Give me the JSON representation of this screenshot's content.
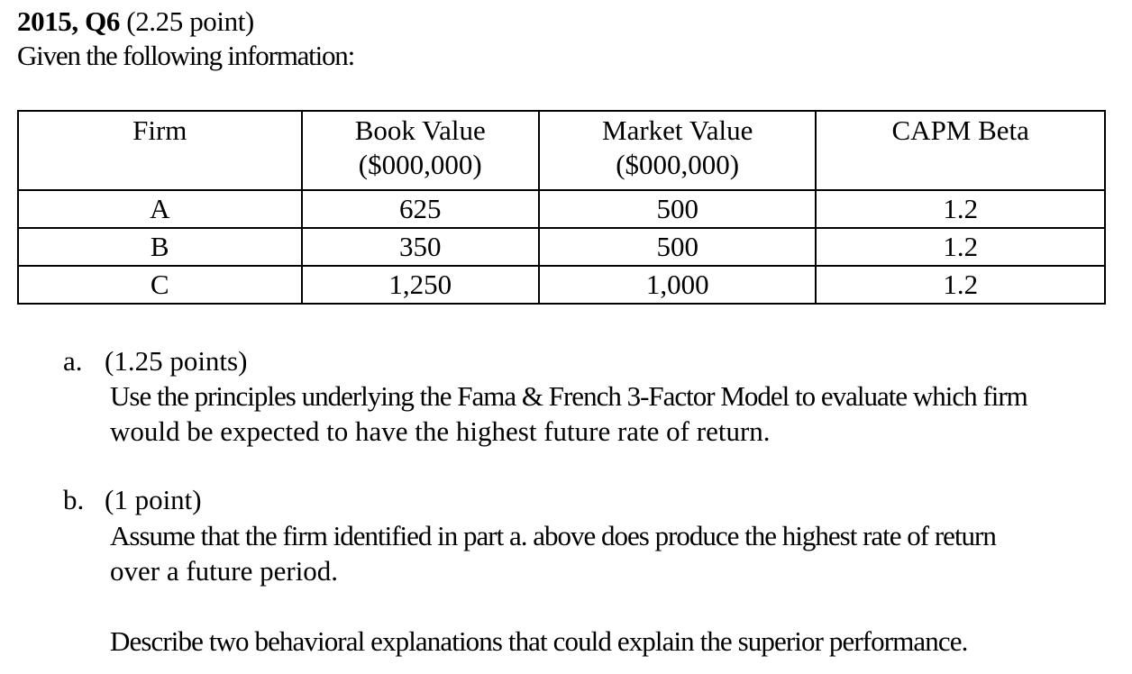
{
  "header": {
    "question_id": "2015, Q6",
    "points": "(2.25 point)",
    "intro": "Given the following information:"
  },
  "table": {
    "headers": [
      [
        "Firm"
      ],
      [
        "Book Value",
        "($000,000)"
      ],
      [
        "Market Value",
        "($000,000)"
      ],
      [
        "CAPM Beta"
      ]
    ],
    "rows": [
      [
        "A",
        "625",
        "500",
        "1.2"
      ],
      [
        "B",
        "350",
        "500",
        "1.2"
      ],
      [
        "C",
        "1,250",
        "1,000",
        "1.2"
      ]
    ]
  },
  "parts": [
    {
      "marker": "a.",
      "points": "(1.25 points)",
      "lines": [
        "Use the principles underlying the Fama & French 3-Factor Model to evaluate which firm",
        "would be expected to have the highest future rate of return."
      ]
    },
    {
      "marker": "b.",
      "points": "(1 point)",
      "lines": [
        "Assume that the firm identified in part a. above does produce the highest rate of return",
        "over a future period."
      ],
      "extra": "Describe two behavioral explanations that could explain the superior performance."
    }
  ]
}
